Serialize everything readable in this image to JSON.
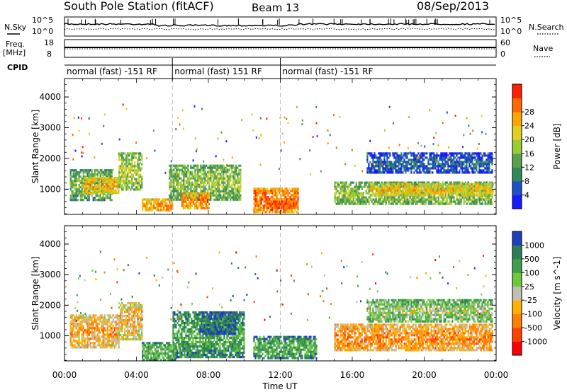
{
  "header": {
    "station": "South Pole Station (fitACF)",
    "beam": "Beam 13",
    "date": "08/Sep/2013"
  },
  "side_labels": {
    "nsky": "N.Sky",
    "nsearch": "N.Search",
    "freq": "Freq.",
    "freq_unit": "[MHz]",
    "nave": "Nave",
    "cpid": "CPID",
    "nsky_ticks": [
      "10^5",
      "10^0"
    ],
    "nsearch_ticks": [
      "10^5",
      "10^0"
    ],
    "freq_ticks": [
      "18",
      "8"
    ],
    "nave_ticks": [
      "60",
      "0"
    ]
  },
  "cpid_segments": [
    {
      "label": "normal (fast) -151 RF",
      "start_hour": 0.0,
      "end_hour": 6.0
    },
    {
      "label": "normal (fast) 151 RF",
      "start_hour": 6.0,
      "end_hour": 12.0
    },
    {
      "label": "normal (fast) -151 RF",
      "start_hour": 12.0,
      "end_hour": 24.0
    }
  ],
  "chart_data": [
    {
      "type": "heatmap",
      "name": "power-panel",
      "ylabel": "Slant Range [km]",
      "xlabel": "Time UT",
      "xlim": [
        0,
        24
      ],
      "ylim": [
        180,
        4600
      ],
      "x_ticks": [
        "00:00",
        "04:00",
        "08:00",
        "12:00",
        "16:00",
        "20:00",
        "00:00"
      ],
      "y_ticks": [
        1000,
        2000,
        3000,
        4000
      ],
      "colorbar": {
        "label": "Power [dB]",
        "ticks": [
          "4",
          "8",
          "12",
          "16",
          "20",
          "24",
          "28"
        ],
        "colors": [
          "#1a1aff",
          "#1e50c8",
          "#2f8a5a",
          "#5aa050",
          "#9acd32",
          "#e0d020",
          "#ffa500",
          "#ff6a00",
          "#ff2000"
        ]
      },
      "regions": [
        {
          "t": [
            0.3,
            2.6
          ],
          "r": [
            650,
            1650
          ],
          "level": 0.45
        },
        {
          "t": [
            1.0,
            3.0
          ],
          "r": [
            900,
            1400
          ],
          "level": 0.75
        },
        {
          "t": [
            3.0,
            4.3
          ],
          "r": [
            1000,
            2200
          ],
          "level": 0.55
        },
        {
          "t": [
            4.3,
            6.0
          ],
          "r": [
            300,
            700
          ],
          "level": 0.8
        },
        {
          "t": [
            5.8,
            9.8
          ],
          "r": [
            650,
            1800
          ],
          "level": 0.5
        },
        {
          "t": [
            6.5,
            8.0
          ],
          "r": [
            350,
            900
          ],
          "level": 0.85
        },
        {
          "t": [
            10.5,
            13.0
          ],
          "r": [
            250,
            1050
          ],
          "level": 0.9
        },
        {
          "t": [
            11.2,
            12.7
          ],
          "r": [
            400,
            700
          ],
          "level": 1.0
        },
        {
          "t": [
            15.0,
            23.8
          ],
          "r": [
            500,
            1250
          ],
          "level": 0.5
        },
        {
          "t": [
            17.0,
            23.8
          ],
          "r": [
            800,
            1200
          ],
          "level": 0.7
        },
        {
          "t": [
            16.8,
            23.8
          ],
          "r": [
            1550,
            2200
          ],
          "level": 0.2
        }
      ]
    },
    {
      "type": "heatmap",
      "name": "velocity-panel",
      "ylabel": "Slant Range [km]",
      "xlabel": "Time UT",
      "xlim": [
        0,
        24
      ],
      "ylim": [
        180,
        4600
      ],
      "x_ticks": [
        "00:00",
        "04:00",
        "08:00",
        "12:00",
        "16:00",
        "20:00",
        "00:00"
      ],
      "y_ticks": [
        1000,
        2000,
        3000,
        4000
      ],
      "colorbar": {
        "label": "Velocity [m s^-1]",
        "ticks": [
          "1000",
          "500",
          "100",
          "25",
          "-25",
          "-100",
          "-500",
          "-1000"
        ],
        "colors": [
          "#1f3fbf",
          "#2e7d5a",
          "#3ea04a",
          "#6dc83c",
          "#c0c0b0",
          "#ffb000",
          "#ff7f00",
          "#ff4000",
          "#ff0000"
        ]
      },
      "regions": [
        {
          "t": [
            0.3,
            3.0
          ],
          "r": [
            600,
            1700
          ],
          "level": 0.7
        },
        {
          "t": [
            3.0,
            4.3
          ],
          "r": [
            900,
            2100
          ],
          "level": 0.65
        },
        {
          "t": [
            4.3,
            6.2
          ],
          "r": [
            200,
            800
          ],
          "level": 0.35
        },
        {
          "t": [
            6.0,
            10.0
          ],
          "r": [
            300,
            1800
          ],
          "level": 0.3
        },
        {
          "t": [
            7.5,
            9.5
          ],
          "r": [
            1100,
            1800
          ],
          "level": 0.15
        },
        {
          "t": [
            10.5,
            14.0
          ],
          "r": [
            250,
            1000
          ],
          "level": 0.3
        },
        {
          "t": [
            15.0,
            23.8
          ],
          "r": [
            500,
            1400
          ],
          "level": 0.75
        },
        {
          "t": [
            16.8,
            23.8
          ],
          "r": [
            1500,
            2200
          ],
          "level": 0.45
        }
      ]
    }
  ]
}
